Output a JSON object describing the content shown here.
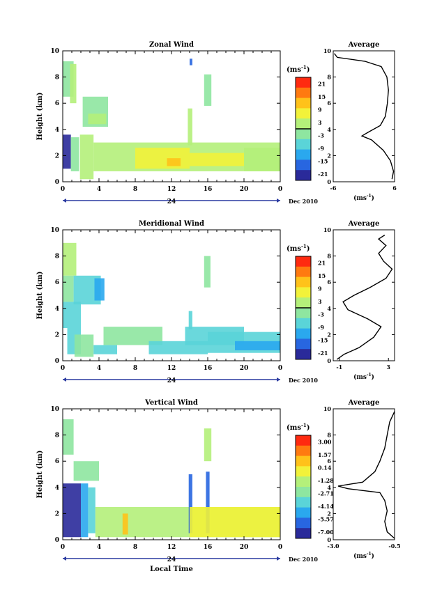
{
  "chart_data": [
    {
      "type": "heatmap",
      "title": "Zonal Wind",
      "ylabel": "Height (km)",
      "yticks": [
        "0",
        "2",
        "4",
        "6",
        "8",
        "10"
      ],
      "xticks": [
        "0",
        "4",
        "8",
        "12",
        "16",
        "20",
        "0"
      ],
      "date_tick": "24",
      "date_label": "Dec 2010",
      "unit_label": "(ms",
      "unit_exp": "-1",
      "unit_close": ")",
      "colorbar_ticks": [
        "21",
        "15",
        "9",
        "3",
        "-3",
        "-9",
        "-15",
        "-21"
      ],
      "colorbar_mark_index": 3.5,
      "ylim": [
        0,
        10
      ],
      "xlim": [
        0,
        24
      ],
      "avg_title": "Average",
      "avg_xticks": [
        "-6",
        "6"
      ],
      "avg_yticks": [
        "0",
        "2",
        "4",
        "6",
        "8",
        "10"
      ],
      "avg_xlim": [
        -6,
        6
      ],
      "avg_profile": [
        [
          5.5,
          0.2
        ],
        [
          5.8,
          0.8
        ],
        [
          5.2,
          1.6
        ],
        [
          3.8,
          2.4
        ],
        [
          1.5,
          3.2
        ],
        [
          -0.4,
          3.5
        ],
        [
          0.9,
          3.8
        ],
        [
          3.2,
          4.3
        ],
        [
          4.2,
          5.0
        ],
        [
          4.6,
          6.0
        ],
        [
          4.8,
          7.0
        ],
        [
          4.5,
          8.0
        ],
        [
          3.4,
          8.8
        ],
        [
          0.2,
          9.2
        ],
        [
          -5.2,
          9.5
        ],
        [
          -5.8,
          9.8
        ]
      ]
    },
    {
      "type": "heatmap",
      "title": "Meridional Wind",
      "ylabel": "Height (km)",
      "yticks": [
        "0",
        "2",
        "4",
        "6",
        "8",
        "10"
      ],
      "xticks": [
        "0",
        "4",
        "8",
        "12",
        "16",
        "20",
        "0"
      ],
      "date_tick": "24",
      "date_label": "Dec 2010",
      "unit_label": "(ms",
      "unit_exp": "-1",
      "unit_close": ")",
      "colorbar_ticks": [
        "21",
        "15",
        "9",
        "3",
        "-3",
        "-9",
        "-15",
        "-21"
      ],
      "colorbar_mark_index": 3.5,
      "ylim": [
        0,
        10
      ],
      "xlim": [
        0,
        24
      ],
      "avg_title": "Average",
      "avg_xticks": [
        "-1",
        "3"
      ],
      "avg_yticks": [
        "0",
        "2",
        "4",
        "6",
        "8",
        "10"
      ],
      "avg_xlim": [
        -1.5,
        3.5
      ],
      "avg_profile": [
        [
          -1.2,
          0.1
        ],
        [
          -0.6,
          0.5
        ],
        [
          0.6,
          1.0
        ],
        [
          1.8,
          1.8
        ],
        [
          2.4,
          2.6
        ],
        [
          1.3,
          3.2
        ],
        [
          -0.3,
          3.9
        ],
        [
          -0.7,
          4.5
        ],
        [
          0.2,
          5.0
        ],
        [
          1.5,
          5.6
        ],
        [
          2.8,
          6.3
        ],
        [
          3.3,
          7.0
        ],
        [
          2.6,
          7.6
        ],
        [
          2.2,
          8.2
        ],
        [
          2.8,
          8.8
        ],
        [
          2.2,
          9.3
        ],
        [
          2.7,
          9.6
        ]
      ]
    },
    {
      "type": "heatmap",
      "title": "Vertical Wind",
      "ylabel": "Height (km)",
      "xlabel": "Local Time",
      "yticks": [
        "0",
        "2",
        "4",
        "6",
        "8",
        "10"
      ],
      "xticks": [
        "0",
        "4",
        "8",
        "12",
        "16",
        "20",
        "0"
      ],
      "date_tick": "24",
      "date_label": "Dec 2010",
      "unit_label": "(ms",
      "unit_exp": "-1",
      "unit_close": ")",
      "colorbar_ticks": [
        "3.00",
        "1.57",
        "0.14",
        "-1.28",
        "-2.71",
        "-4.14",
        "-5.57",
        "-7.00"
      ],
      "colorbar_mark_index": null,
      "ylim": [
        0,
        10
      ],
      "xlim": [
        0,
        24
      ],
      "avg_title": "Average",
      "avg_xticks": [
        "-3.0",
        "-0.5"
      ],
      "avg_yticks": [
        "0",
        "2",
        "4",
        "6",
        "8",
        "10"
      ],
      "avg_xlim": [
        -3.0,
        -0.5
      ],
      "avg_profile": [
        [
          -0.5,
          0.1
        ],
        [
          -0.8,
          0.6
        ],
        [
          -0.9,
          1.4
        ],
        [
          -0.8,
          2.2
        ],
        [
          -0.9,
          3.0
        ],
        [
          -1.1,
          3.6
        ],
        [
          -2.4,
          3.9
        ],
        [
          -2.8,
          4.1
        ],
        [
          -1.8,
          4.4
        ],
        [
          -1.3,
          5.2
        ],
        [
          -1.1,
          6.0
        ],
        [
          -0.9,
          7.0
        ],
        [
          -0.8,
          8.0
        ],
        [
          -0.7,
          9.0
        ],
        [
          -0.5,
          9.8
        ]
      ]
    }
  ]
}
